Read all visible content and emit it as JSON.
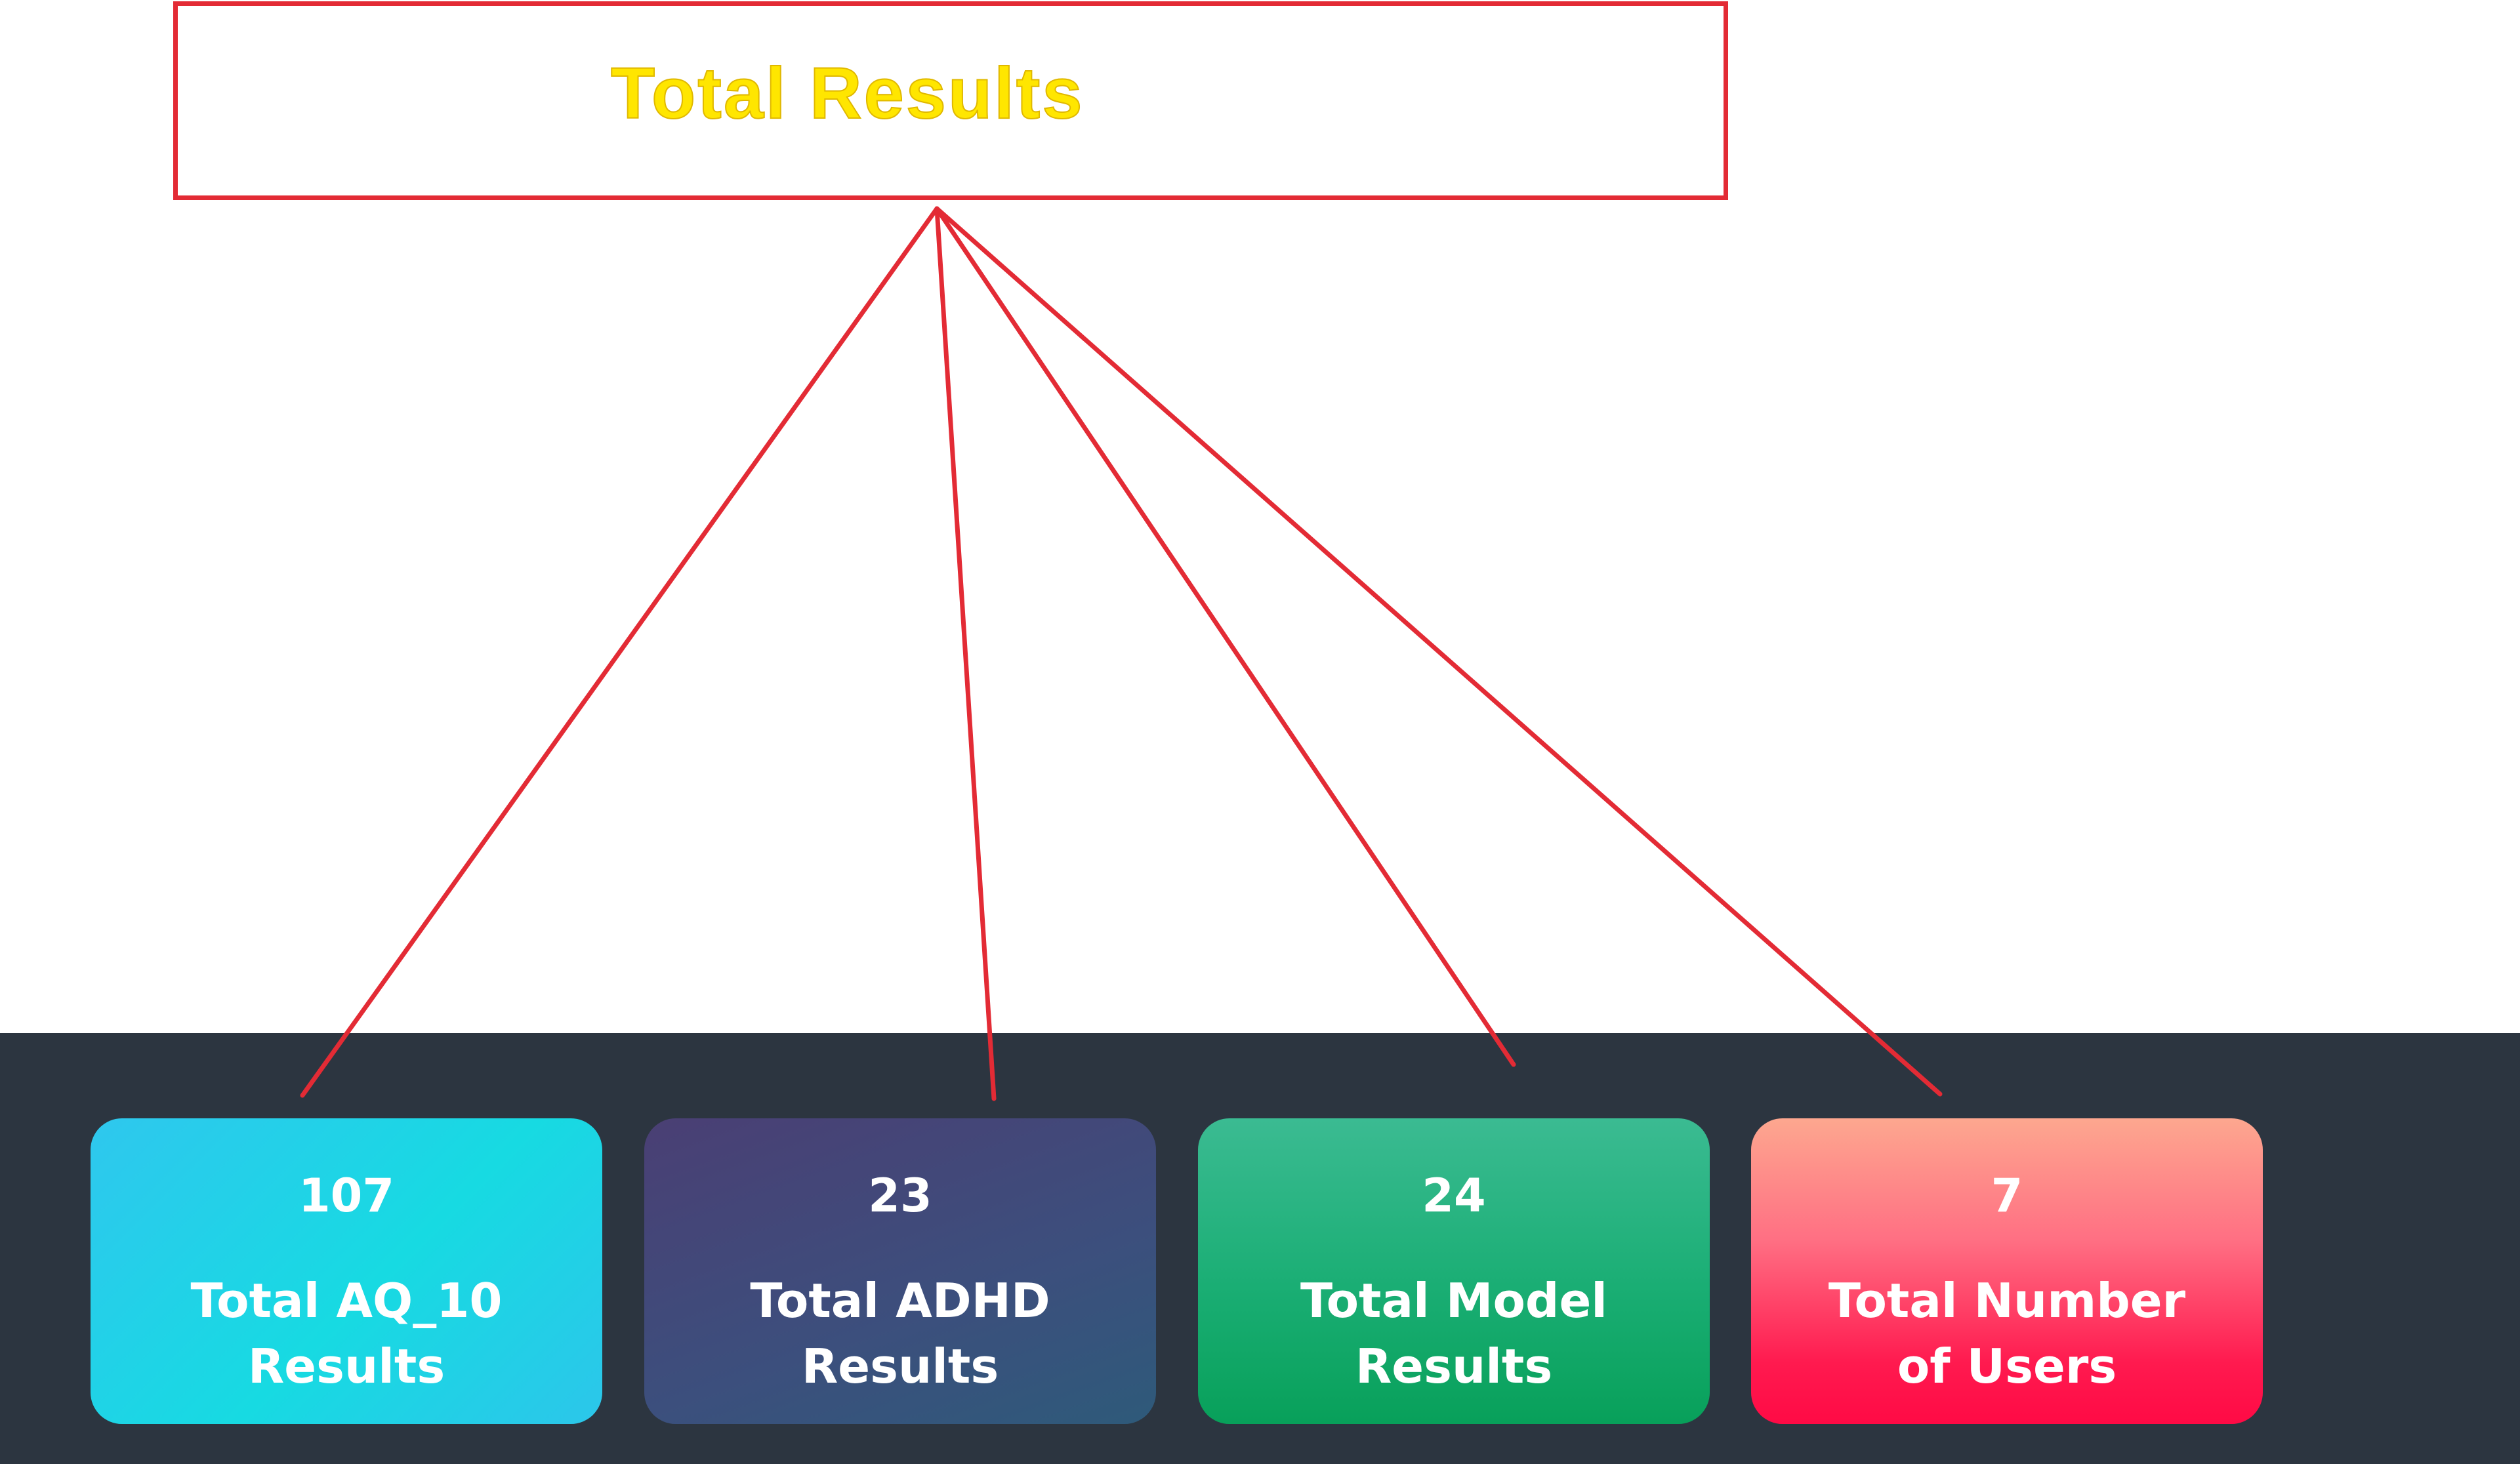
{
  "callout": {
    "title": "Total Results"
  },
  "colors": {
    "callout_border": "#e32b35",
    "callout_title": "#ffe600",
    "dark_bar": "#2c3540",
    "card_text": "#ffffff"
  },
  "cards": [
    {
      "value": "107",
      "label_line1": "Total AQ_10",
      "label_line2": "Results",
      "color": "#1fd0e8"
    },
    {
      "value": "23",
      "label_line1": "Total ADHD",
      "label_line2": "Results",
      "color": "#3c4f7d"
    },
    {
      "value": "24",
      "label_line1": "Total Model",
      "label_line2": "Results",
      "color": "#1aae74"
    },
    {
      "value": "7",
      "label_line1": "Total Number",
      "label_line2": "of Users",
      "color": "#ff3a64"
    }
  ]
}
